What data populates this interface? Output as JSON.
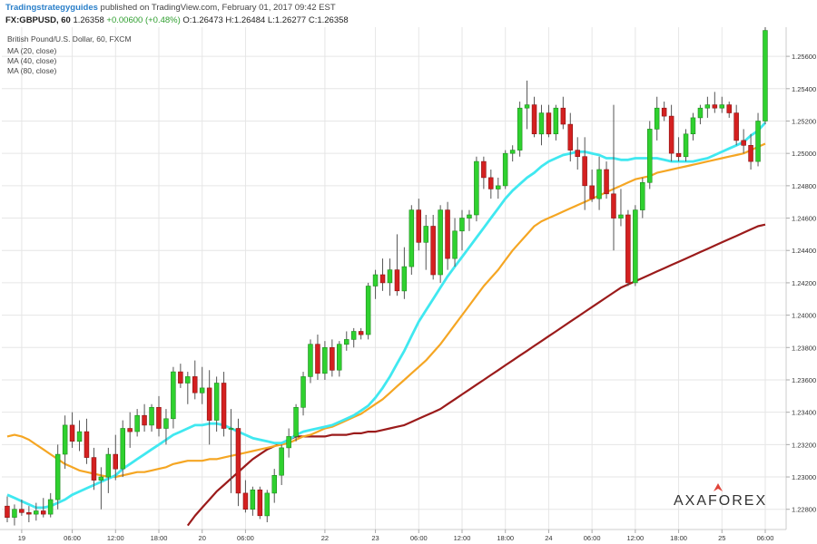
{
  "header": {
    "publisher": "Tradingstrategyguides",
    "published_text": "published on TradingView.com, February 01, 2017 09:42 EST",
    "symbol": "FX:GBPUSD, 60",
    "last": "1.26358",
    "change": "+0.00600 (+0.48%)",
    "open_label": "O:",
    "open": "1.26473",
    "high_label": "H:",
    "high": "1.26484",
    "low_label": "L:",
    "low": "1.26277",
    "close_label": "C:",
    "close": "1.26358"
  },
  "legend": {
    "title": "British Pound/U.S. Dollar, 60, FXCM",
    "ma20": "MA (20, close)",
    "ma40": "MA (40, close)",
    "ma80": "MA (80, close)"
  },
  "logo": {
    "text": "AXAFOREX",
    "accent_color": "#e0443a"
  },
  "colors": {
    "up": "#2fd12f",
    "down": "#d42020",
    "ma20": "#40e8f0",
    "ma40": "#f5a623",
    "ma80": "#9b1b1b",
    "grid": "#e6e6e6"
  },
  "chart_data": {
    "type": "candlestick",
    "ylim": [
      1.2272,
      1.2578
    ],
    "y_ticks": [
      "1.25600",
      "1.25400",
      "1.25200",
      "1.25000",
      "1.24800",
      "1.24600",
      "1.24400",
      "1.24200",
      "1.24000",
      "1.23800",
      "1.23600",
      "1.23400",
      "1.23200",
      "1.23000",
      "1.22800"
    ],
    "x_ticks": [
      {
        "label": "19",
        "i": 2
      },
      {
        "label": "06:00",
        "i": 9
      },
      {
        "label": "12:00",
        "i": 15
      },
      {
        "label": "18:00",
        "i": 21
      },
      {
        "label": "20",
        "i": 27
      },
      {
        "label": "06:00",
        "i": 33
      },
      {
        "label": "22",
        "i": 44
      },
      {
        "label": "23",
        "i": 51
      },
      {
        "label": "06:00",
        "i": 57
      },
      {
        "label": "12:00",
        "i": 63
      },
      {
        "label": "18:00",
        "i": 69
      },
      {
        "label": "24",
        "i": 75
      },
      {
        "label": "06:00",
        "i": 81
      },
      {
        "label": "12:00",
        "i": 87
      },
      {
        "label": "18:00",
        "i": 93
      },
      {
        "label": "25",
        "i": 99
      },
      {
        "label": "06:00",
        "i": 105
      }
    ],
    "candles": [
      {
        "o": 1.2282,
        "h": 1.2288,
        "l": 1.2272,
        "c": 1.2275
      },
      {
        "o": 1.2275,
        "h": 1.2283,
        "l": 1.227,
        "c": 1.228
      },
      {
        "o": 1.228,
        "h": 1.2286,
        "l": 1.2276,
        "c": 1.2278
      },
      {
        "o": 1.2278,
        "h": 1.2282,
        "l": 1.2272,
        "c": 1.2277
      },
      {
        "o": 1.2277,
        "h": 1.2284,
        "l": 1.2273,
        "c": 1.2279
      },
      {
        "o": 1.2279,
        "h": 1.2287,
        "l": 1.2275,
        "c": 1.2277
      },
      {
        "o": 1.2277,
        "h": 1.229,
        "l": 1.2275,
        "c": 1.2286
      },
      {
        "o": 1.2286,
        "h": 1.232,
        "l": 1.228,
        "c": 1.2314
      },
      {
        "o": 1.2314,
        "h": 1.2338,
        "l": 1.2305,
        "c": 1.2332
      },
      {
        "o": 1.2332,
        "h": 1.234,
        "l": 1.2318,
        "c": 1.2322
      },
      {
        "o": 1.2322,
        "h": 1.2335,
        "l": 1.2316,
        "c": 1.2328
      },
      {
        "o": 1.2328,
        "h": 1.2336,
        "l": 1.2308,
        "c": 1.2312
      },
      {
        "o": 1.2312,
        "h": 1.2318,
        "l": 1.2292,
        "c": 1.2298
      },
      {
        "o": 1.2298,
        "h": 1.2306,
        "l": 1.228,
        "c": 1.23
      },
      {
        "o": 1.23,
        "h": 1.2318,
        "l": 1.229,
        "c": 1.2314
      },
      {
        "o": 1.2314,
        "h": 1.2326,
        "l": 1.2298,
        "c": 1.2305
      },
      {
        "o": 1.2305,
        "h": 1.2335,
        "l": 1.23,
        "c": 1.233
      },
      {
        "o": 1.233,
        "h": 1.234,
        "l": 1.2318,
        "c": 1.2328
      },
      {
        "o": 1.2328,
        "h": 1.2342,
        "l": 1.2325,
        "c": 1.2338
      },
      {
        "o": 1.2338,
        "h": 1.2345,
        "l": 1.2328,
        "c": 1.2332
      },
      {
        "o": 1.2332,
        "h": 1.2345,
        "l": 1.2328,
        "c": 1.2343
      },
      {
        "o": 1.2343,
        "h": 1.235,
        "l": 1.2325,
        "c": 1.233
      },
      {
        "o": 1.233,
        "h": 1.2342,
        "l": 1.232,
        "c": 1.2336
      },
      {
        "o": 1.2336,
        "h": 1.2368,
        "l": 1.233,
        "c": 1.2365
      },
      {
        "o": 1.2365,
        "h": 1.237,
        "l": 1.2355,
        "c": 1.2358
      },
      {
        "o": 1.2358,
        "h": 1.2365,
        "l": 1.2345,
        "c": 1.2362
      },
      {
        "o": 1.2362,
        "h": 1.2372,
        "l": 1.2348,
        "c": 1.2352
      },
      {
        "o": 1.2352,
        "h": 1.2368,
        "l": 1.2345,
        "c": 1.2355
      },
      {
        "o": 1.2355,
        "h": 1.2366,
        "l": 1.232,
        "c": 1.2335
      },
      {
        "o": 1.2335,
        "h": 1.2362,
        "l": 1.2328,
        "c": 1.2358
      },
      {
        "o": 1.2358,
        "h": 1.2365,
        "l": 1.2325,
        "c": 1.233
      },
      {
        "o": 1.233,
        "h": 1.2342,
        "l": 1.229,
        "c": 1.233
      },
      {
        "o": 1.233,
        "h": 1.2336,
        "l": 1.2282,
        "c": 1.229
      },
      {
        "o": 1.229,
        "h": 1.2298,
        "l": 1.2278,
        "c": 1.228
      },
      {
        "o": 1.228,
        "h": 1.2294,
        "l": 1.2276,
        "c": 1.2292
      },
      {
        "o": 1.2292,
        "h": 1.2294,
        "l": 1.2274,
        "c": 1.2276
      },
      {
        "o": 1.2276,
        "h": 1.2292,
        "l": 1.2272,
        "c": 1.229
      },
      {
        "o": 1.229,
        "h": 1.2305,
        "l": 1.2284,
        "c": 1.2301
      },
      {
        "o": 1.2301,
        "h": 1.232,
        "l": 1.2295,
        "c": 1.2318
      },
      {
        "o": 1.2318,
        "h": 1.233,
        "l": 1.2312,
        "c": 1.2325
      },
      {
        "o": 1.2325,
        "h": 1.2345,
        "l": 1.2322,
        "c": 1.2343
      },
      {
        "o": 1.2343,
        "h": 1.2365,
        "l": 1.2338,
        "c": 1.2362
      },
      {
        "o": 1.2362,
        "h": 1.2385,
        "l": 1.2358,
        "c": 1.2382
      },
      {
        "o": 1.2382,
        "h": 1.2388,
        "l": 1.236,
        "c": 1.2364
      },
      {
        "o": 1.2364,
        "h": 1.2384,
        "l": 1.236,
        "c": 1.238
      },
      {
        "o": 1.238,
        "h": 1.2385,
        "l": 1.2362,
        "c": 1.2366
      },
      {
        "o": 1.2366,
        "h": 1.2384,
        "l": 1.2362,
        "c": 1.2382
      },
      {
        "o": 1.2382,
        "h": 1.239,
        "l": 1.2378,
        "c": 1.2385
      },
      {
        "o": 1.2385,
        "h": 1.2392,
        "l": 1.238,
        "c": 1.239
      },
      {
        "o": 1.239,
        "h": 1.2392,
        "l": 1.2385,
        "c": 1.2388
      },
      {
        "o": 1.2388,
        "h": 1.242,
        "l": 1.2385,
        "c": 1.2418
      },
      {
        "o": 1.2418,
        "h": 1.2428,
        "l": 1.241,
        "c": 1.2425
      },
      {
        "o": 1.2425,
        "h": 1.2435,
        "l": 1.2415,
        "c": 1.242
      },
      {
        "o": 1.242,
        "h": 1.2435,
        "l": 1.2412,
        "c": 1.2428
      },
      {
        "o": 1.2428,
        "h": 1.245,
        "l": 1.2412,
        "c": 1.2415
      },
      {
        "o": 1.2415,
        "h": 1.2442,
        "l": 1.241,
        "c": 1.243
      },
      {
        "o": 1.243,
        "h": 1.2468,
        "l": 1.2425,
        "c": 1.2465
      },
      {
        "o": 1.2465,
        "h": 1.2472,
        "l": 1.244,
        "c": 1.2445
      },
      {
        "o": 1.2445,
        "h": 1.2462,
        "l": 1.2428,
        "c": 1.2455
      },
      {
        "o": 1.2455,
        "h": 1.2462,
        "l": 1.2422,
        "c": 1.2425
      },
      {
        "o": 1.2425,
        "h": 1.2468,
        "l": 1.242,
        "c": 1.2465
      },
      {
        "o": 1.2465,
        "h": 1.247,
        "l": 1.2428,
        "c": 1.2435
      },
      {
        "o": 1.2435,
        "h": 1.246,
        "l": 1.243,
        "c": 1.2452
      },
      {
        "o": 1.2452,
        "h": 1.2465,
        "l": 1.244,
        "c": 1.246
      },
      {
        "o": 1.246,
        "h": 1.2465,
        "l": 1.2452,
        "c": 1.2462
      },
      {
        "o": 1.2462,
        "h": 1.2498,
        "l": 1.2458,
        "c": 1.2495
      },
      {
        "o": 1.2495,
        "h": 1.2498,
        "l": 1.2478,
        "c": 1.2485
      },
      {
        "o": 1.2485,
        "h": 1.249,
        "l": 1.2472,
        "c": 1.2478
      },
      {
        "o": 1.2478,
        "h": 1.2485,
        "l": 1.2472,
        "c": 1.248
      },
      {
        "o": 1.248,
        "h": 1.2502,
        "l": 1.2478,
        "c": 1.25
      },
      {
        "o": 1.25,
        "h": 1.2505,
        "l": 1.2495,
        "c": 1.2502
      },
      {
        "o": 1.2502,
        "h": 1.2532,
        "l": 1.2498,
        "c": 1.2528
      },
      {
        "o": 1.2528,
        "h": 1.2545,
        "l": 1.2515,
        "c": 1.253
      },
      {
        "o": 1.253,
        "h": 1.2535,
        "l": 1.251,
        "c": 1.2512
      },
      {
        "o": 1.2512,
        "h": 1.253,
        "l": 1.2505,
        "c": 1.2525
      },
      {
        "o": 1.2525,
        "h": 1.253,
        "l": 1.251,
        "c": 1.2512
      },
      {
        "o": 1.2512,
        "h": 1.253,
        "l": 1.2508,
        "c": 1.2528
      },
      {
        "o": 1.2528,
        "h": 1.2535,
        "l": 1.2515,
        "c": 1.2518
      },
      {
        "o": 1.2518,
        "h": 1.2525,
        "l": 1.2495,
        "c": 1.2502
      },
      {
        "o": 1.2502,
        "h": 1.251,
        "l": 1.249,
        "c": 1.2498
      },
      {
        "o": 1.2498,
        "h": 1.251,
        "l": 1.2465,
        "c": 1.248
      },
      {
        "o": 1.248,
        "h": 1.249,
        "l": 1.247,
        "c": 1.2472
      },
      {
        "o": 1.2472,
        "h": 1.2498,
        "l": 1.2465,
        "c": 1.249
      },
      {
        "o": 1.249,
        "h": 1.2495,
        "l": 1.2472,
        "c": 1.2475
      },
      {
        "o": 1.2475,
        "h": 1.253,
        "l": 1.244,
        "c": 1.246
      },
      {
        "o": 1.246,
        "h": 1.2478,
        "l": 1.2455,
        "c": 1.2462
      },
      {
        "o": 1.2462,
        "h": 1.2465,
        "l": 1.2418,
        "c": 1.242
      },
      {
        "o": 1.242,
        "h": 1.2468,
        "l": 1.2418,
        "c": 1.2465
      },
      {
        "o": 1.2465,
        "h": 1.2485,
        "l": 1.246,
        "c": 1.2482
      },
      {
        "o": 1.2482,
        "h": 1.252,
        "l": 1.2478,
        "c": 1.2515
      },
      {
        "o": 1.2515,
        "h": 1.2535,
        "l": 1.2508,
        "c": 1.2528
      },
      {
        "o": 1.2528,
        "h": 1.2532,
        "l": 1.252,
        "c": 1.2523
      },
      {
        "o": 1.2523,
        "h": 1.253,
        "l": 1.2495,
        "c": 1.25
      },
      {
        "o": 1.25,
        "h": 1.251,
        "l": 1.2495,
        "c": 1.2498
      },
      {
        "o": 1.2498,
        "h": 1.2515,
        "l": 1.2495,
        "c": 1.2512
      },
      {
        "o": 1.2512,
        "h": 1.2525,
        "l": 1.2508,
        "c": 1.2522
      },
      {
        "o": 1.2522,
        "h": 1.253,
        "l": 1.2518,
        "c": 1.2528
      },
      {
        "o": 1.2528,
        "h": 1.2535,
        "l": 1.2522,
        "c": 1.253
      },
      {
        "o": 1.253,
        "h": 1.2538,
        "l": 1.2525,
        "c": 1.2528
      },
      {
        "o": 1.2528,
        "h": 1.2535,
        "l": 1.2525,
        "c": 1.253
      },
      {
        "o": 1.253,
        "h": 1.2532,
        "l": 1.2522,
        "c": 1.2525
      },
      {
        "o": 1.2525,
        "h": 1.253,
        "l": 1.2505,
        "c": 1.2508
      },
      {
        "o": 1.2508,
        "h": 1.2515,
        "l": 1.25,
        "c": 1.2505
      },
      {
        "o": 1.2505,
        "h": 1.2512,
        "l": 1.249,
        "c": 1.2495
      },
      {
        "o": 1.2495,
        "h": 1.2525,
        "l": 1.2492,
        "c": 1.252
      },
      {
        "o": 1.252,
        "h": 1.2578,
        "l": 1.2518,
        "c": 1.2576
      }
    ],
    "ma20": [
      1.2289,
      1.2287,
      1.2285,
      1.2283,
      1.2281,
      1.2281,
      1.2282,
      1.2284,
      1.2286,
      1.2289,
      1.2291,
      1.2293,
      1.2295,
      1.2297,
      1.2299,
      1.2301,
      1.2305,
      1.2308,
      1.2311,
      1.2314,
      1.2317,
      1.232,
      1.2323,
      1.2326,
      1.2328,
      1.233,
      1.2332,
      1.2332,
      1.2333,
      1.2333,
      1.2332,
      1.233,
      1.2328,
      1.2326,
      1.2324,
      1.2323,
      1.2322,
      1.2321,
      1.2321,
      1.2323,
      1.2326,
      1.2328,
      1.2329,
      1.233,
      1.2331,
      1.2332,
      1.2334,
      1.2336,
      1.2338,
      1.2341,
      1.2344,
      1.2349,
      1.2355,
      1.2362,
      1.237,
      1.2378,
      1.2387,
      1.2396,
      1.2403,
      1.241,
      1.2417,
      1.2424,
      1.243,
      1.2436,
      1.2442,
      1.2448,
      1.2454,
      1.246,
      1.2466,
      1.2472,
      1.2477,
      1.2481,
      1.2485,
      1.2488,
      1.2492,
      1.2495,
      1.2497,
      1.2499,
      1.25,
      1.2501,
      1.2501,
      1.25,
      1.2499,
      1.2497,
      1.2497,
      1.2496,
      1.2496,
      1.2497,
      1.2497,
      1.2497,
      1.2497,
      1.2496,
      1.2495,
      1.2495,
      1.2495,
      1.2495,
      1.2496,
      1.2497,
      1.2499,
      1.2501,
      1.2503,
      1.2505,
      1.2507,
      1.2511,
      1.2514,
      1.2519
    ],
    "ma40": [
      1.2325,
      1.2326,
      1.2325,
      1.2323,
      1.232,
      1.2317,
      1.2314,
      1.2311,
      1.2308,
      1.2306,
      1.2304,
      1.2303,
      1.2302,
      1.2301,
      1.23,
      1.23,
      1.2301,
      1.2302,
      1.2303,
      1.2303,
      1.2304,
      1.2305,
      1.2306,
      1.2308,
      1.2309,
      1.231,
      1.231,
      1.231,
      1.2311,
      1.2311,
      1.2312,
      1.2313,
      1.2314,
      1.2315,
      1.2316,
      1.2317,
      1.2318,
      1.2319,
      1.232,
      1.2321,
      1.2323,
      1.2325,
      1.2326,
      1.2328,
      1.233,
      1.2331,
      1.2333,
      1.2335,
      1.2337,
      1.2339,
      1.2342,
      1.2345,
      1.2348,
      1.2352,
      1.2356,
      1.236,
      1.2364,
      1.2368,
      1.2372,
      1.2377,
      1.2382,
      1.2388,
      1.2394,
      1.24,
      1.2406,
      1.2412,
      1.2418,
      1.2423,
      1.2428,
      1.2434,
      1.244,
      1.2445,
      1.245,
      1.2455,
      1.2458,
      1.246,
      1.2462,
      1.2464,
      1.2466,
      1.2468,
      1.247,
      1.2472,
      1.2474,
      1.2476,
      1.2478,
      1.248,
      1.2482,
      1.2484,
      1.2485,
      1.2486,
      1.2488,
      1.2489,
      1.249,
      1.2491,
      1.2492,
      1.2493,
      1.2494,
      1.2495,
      1.2496,
      1.2497,
      1.2498,
      1.2499,
      1.25,
      1.2502,
      1.2504,
      1.2506
    ],
    "ma80": [
      null,
      null,
      null,
      null,
      null,
      null,
      null,
      null,
      null,
      null,
      null,
      null,
      null,
      null,
      null,
      null,
      null,
      null,
      null,
      null,
      null,
      null,
      null,
      null,
      null,
      1.227,
      1.2276,
      1.2281,
      1.2286,
      1.2291,
      1.2295,
      1.2299,
      1.2303,
      1.2307,
      1.2311,
      1.2314,
      1.2317,
      1.2319,
      1.2321,
      1.2323,
      1.2325,
      1.2325,
      1.2325,
      1.2325,
      1.2325,
      1.2326,
      1.2326,
      1.2326,
      1.2327,
      1.2327,
      1.2328,
      1.2328,
      1.2329,
      1.233,
      1.2331,
      1.2332,
      1.2334,
      1.2336,
      1.2338,
      1.234,
      1.2342,
      1.2345,
      1.2348,
      1.2351,
      1.2354,
      1.2357,
      1.236,
      1.2363,
      1.2366,
      1.2369,
      1.2372,
      1.2375,
      1.2378,
      1.2381,
      1.2384,
      1.2387,
      1.239,
      1.2393,
      1.2396,
      1.2399,
      1.2402,
      1.2405,
      1.2408,
      1.2411,
      1.2414,
      1.2417,
      1.2419,
      1.2421,
      1.2423,
      1.2425,
      1.2427,
      1.2429,
      1.2431,
      1.2433,
      1.2435,
      1.2437,
      1.2439,
      1.2441,
      1.2443,
      1.2445,
      1.2447,
      1.2449,
      1.2451,
      1.2453,
      1.2455,
      1.2456
    ]
  }
}
